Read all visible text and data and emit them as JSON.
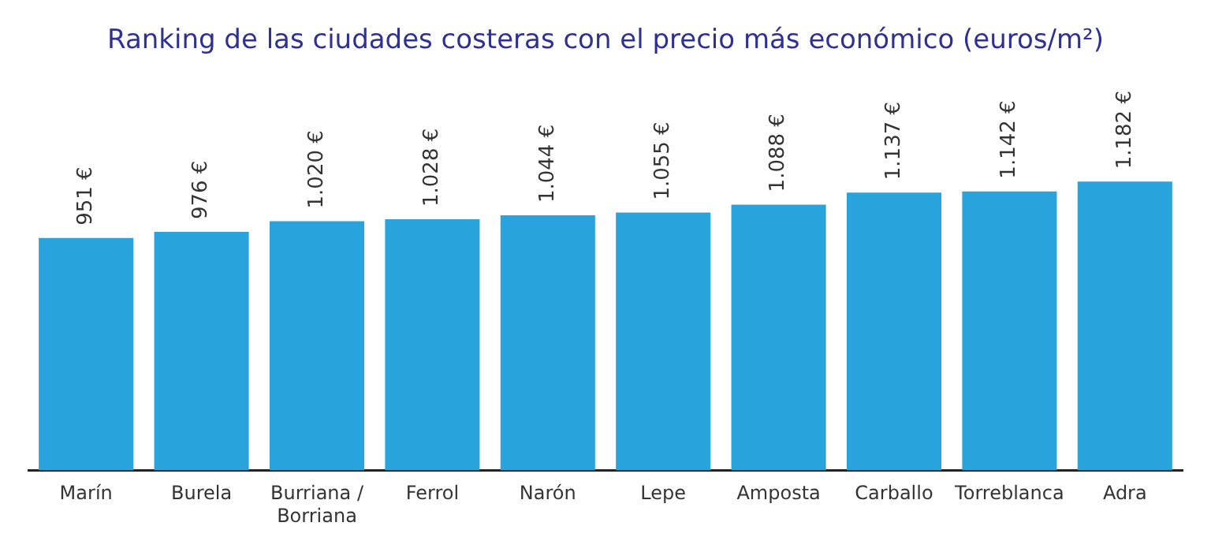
{
  "chart_data": {
    "type": "bar",
    "title": "Ranking de las ciudades costeras con el precio más económico (euros/m²)",
    "categories": [
      "Marín",
      "Burela",
      "Burriana / Borriana",
      "Ferrol",
      "Narón",
      "Lepe",
      "Amposta",
      "Carballo",
      "Torreblanca",
      "Adra"
    ],
    "values": [
      951,
      976,
      1020,
      1028,
      1044,
      1055,
      1088,
      1137,
      1142,
      1182
    ],
    "value_labels": [
      "951 €",
      "976 €",
      "1.020 €",
      "1.028 €",
      "1.044 €",
      "1.055 €",
      "1.088 €",
      "1.137 €",
      "1.142 €",
      "1.182 €"
    ],
    "color": "#29a3dc",
    "grid": false,
    "legend": false
  }
}
